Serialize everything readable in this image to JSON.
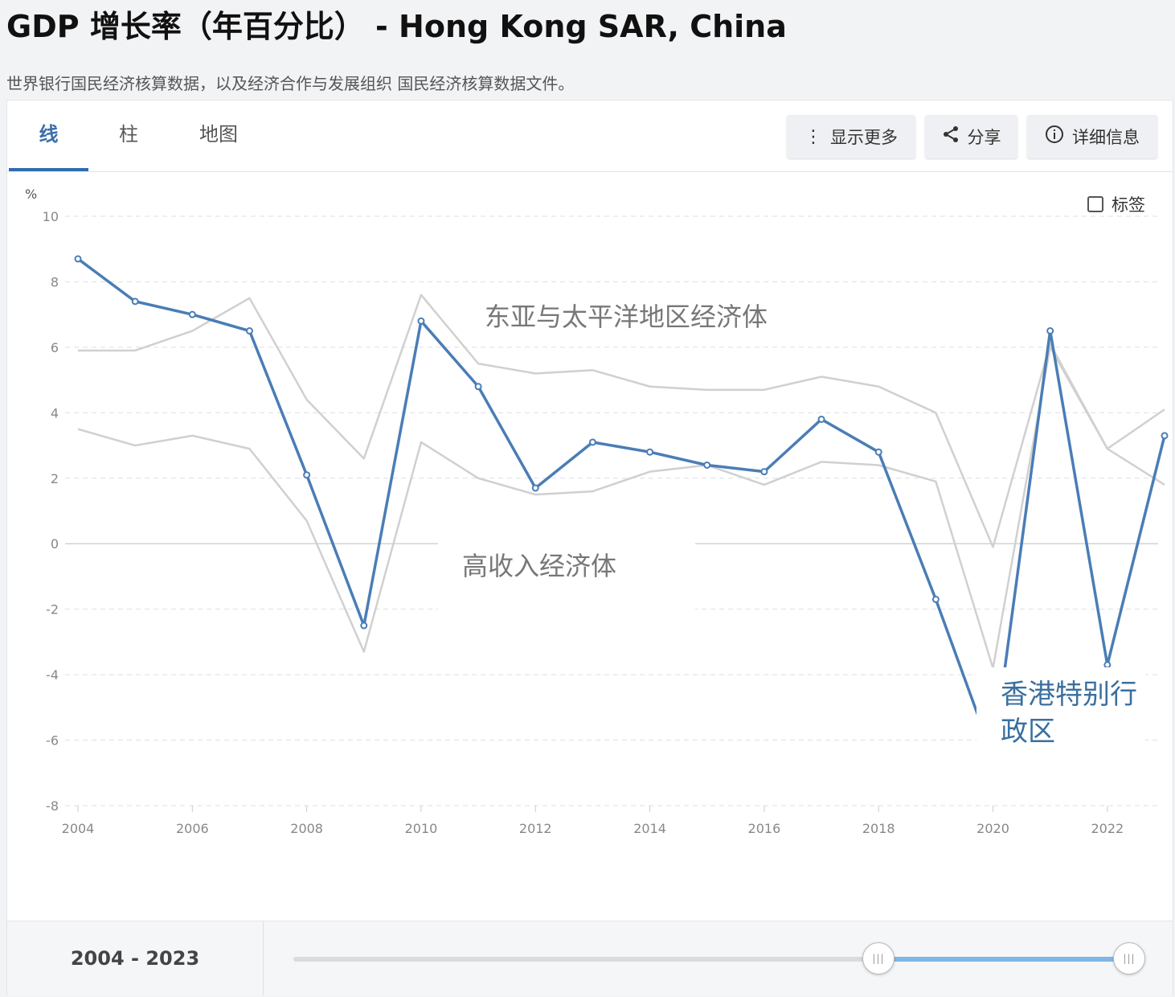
{
  "header": {
    "title": "GDP 增长率（年百分比） - Hong Kong SAR, China",
    "subtitle": "世界银行国民经济核算数据，以及经济合作与发展组织 国民经济核算数据文件。"
  },
  "tabs": [
    {
      "label": "线",
      "active": true
    },
    {
      "label": "柱",
      "active": false
    },
    {
      "label": "地图",
      "active": false
    }
  ],
  "toolbar": {
    "show_more_label": "显示更多",
    "share_label": "分享",
    "details_label": "详细信息"
  },
  "labels_toggle": {
    "label": "标签",
    "checked": false
  },
  "range": {
    "label_start": "2004",
    "label_sep": "-",
    "label_end": "2023",
    "start_fraction": 0.7,
    "end_fraction": 1.0
  },
  "colors": {
    "primary": "#4a7db5",
    "comparison": "#d0d0d0",
    "accent": "#2f6db0",
    "slider_fill": "#7fb6e6"
  },
  "chart_data": {
    "type": "line",
    "title": "",
    "ylabel": "%",
    "xlabel": "",
    "ylim": [
      -8,
      10
    ],
    "yticks": [
      10,
      8,
      6,
      4,
      2,
      0,
      -2,
      -4,
      -6,
      -8
    ],
    "xlim": [
      2004,
      2023
    ],
    "xticks": [
      2004,
      2006,
      2008,
      2010,
      2012,
      2014,
      2016,
      2018,
      2020,
      2022
    ],
    "grid": true,
    "x": [
      2004,
      2005,
      2006,
      2007,
      2008,
      2009,
      2010,
      2011,
      2012,
      2013,
      2014,
      2015,
      2016,
      2017,
      2018,
      2019,
      2020,
      2021,
      2022,
      2023
    ],
    "series": [
      {
        "name": "香港特别行政区",
        "color": "#4a7db5",
        "highlight": true,
        "values": [
          8.7,
          7.4,
          7.0,
          6.5,
          2.1,
          -2.5,
          6.8,
          4.8,
          1.7,
          3.1,
          2.8,
          2.4,
          2.2,
          3.8,
          2.8,
          -1.7,
          -6.5,
          6.5,
          -3.7,
          3.3
        ]
      },
      {
        "name": "东亚与太平洋地区经济体",
        "color": "#d0d0d0",
        "highlight": false,
        "values": [
          5.9,
          5.9,
          6.5,
          7.5,
          4.4,
          2.6,
          7.6,
          5.5,
          5.2,
          5.3,
          4.8,
          4.7,
          4.7,
          5.1,
          4.8,
          4.0,
          -0.1,
          6.1,
          2.9,
          4.1
        ]
      },
      {
        "name": "高收入经济体",
        "color": "#d0d0d0",
        "highlight": false,
        "values": [
          3.5,
          3.0,
          3.3,
          2.9,
          0.7,
          -3.3,
          3.1,
          2.0,
          1.5,
          1.6,
          2.2,
          2.4,
          1.8,
          2.5,
          2.4,
          1.9,
          -3.8,
          6.0,
          2.9,
          1.8
        ]
      }
    ]
  }
}
